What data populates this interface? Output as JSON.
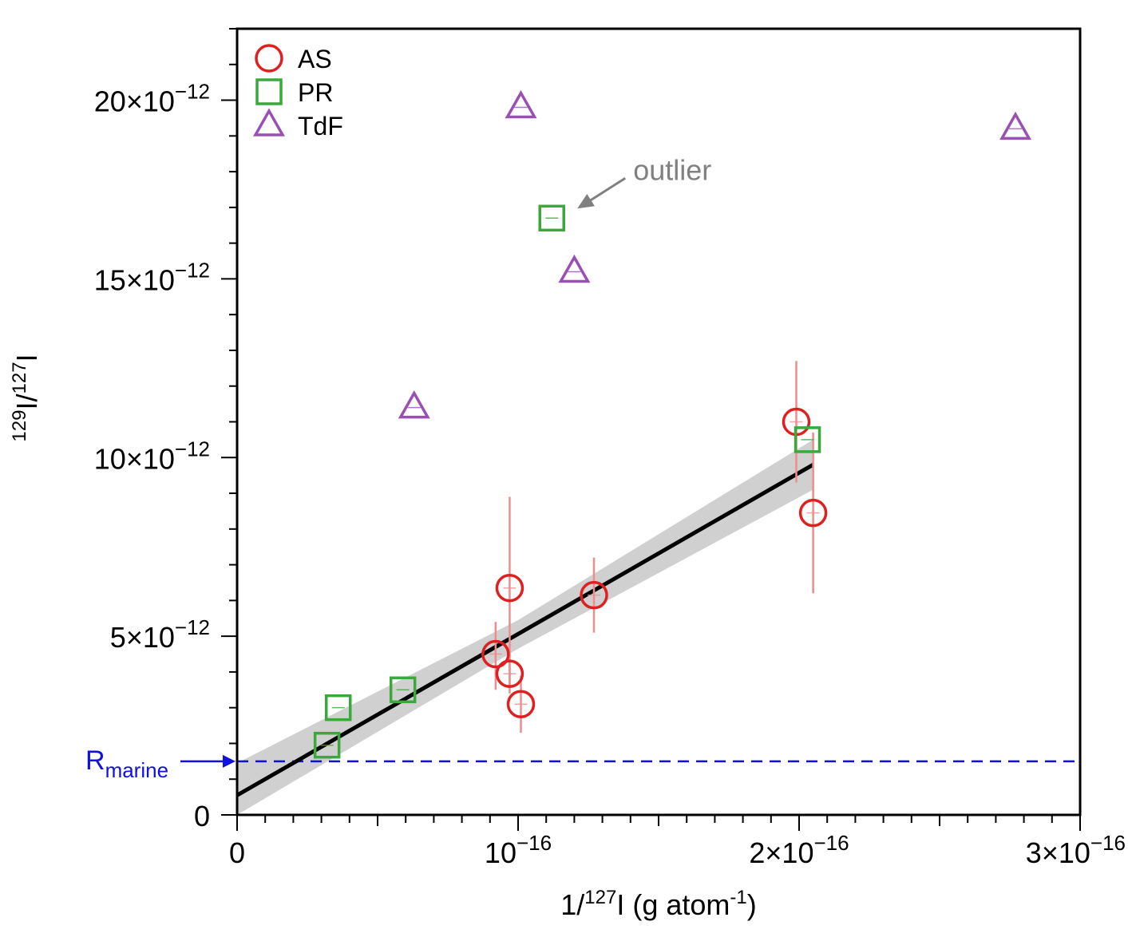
{
  "chart_data": {
    "type": "scatter",
    "xlabel": {
      "base": "1/",
      "sup1": "127",
      "mid": "I (g atom",
      "sup2": "-1",
      "end": ")"
    },
    "ylabel": {
      "sup1": "129",
      "mid": "I/",
      "sup2": "127",
      "end": "I"
    },
    "xlim": [
      0,
      3e-16
    ],
    "ylim": [
      0,
      2.2e-11
    ],
    "x_ticks": [
      {
        "value": 0,
        "base": "0",
        "exp": ""
      },
      {
        "value": 1e-16,
        "base": "10",
        "exp": "−16"
      },
      {
        "value": 2e-16,
        "base": "2×10",
        "exp": "−16"
      },
      {
        "value": 3e-16,
        "base": "3×10",
        "exp": "−16"
      }
    ],
    "y_ticks": [
      {
        "value": 0,
        "base": "0",
        "exp": ""
      },
      {
        "value": 5e-12,
        "base": "5×10",
        "exp": "−12"
      },
      {
        "value": 1e-11,
        "base": "10×10",
        "exp": "−12"
      },
      {
        "value": 1.5e-11,
        "base": "15×10",
        "exp": "−12"
      },
      {
        "value": 2e-11,
        "base": "20×10",
        "exp": "−12"
      }
    ],
    "series": [
      {
        "name": "AS",
        "marker": "circle",
        "color": "#e02020",
        "errorbar_color": "#f08c8c",
        "points": [
          {
            "x": 9.2e-17,
            "y": 4.5e-12,
            "ylo": 3.5e-12,
            "yhi": 5.4e-12
          },
          {
            "x": 9.7e-17,
            "y": 6.35e-12,
            "ylo": 3.6e-12,
            "yhi": 8.9e-12
          },
          {
            "x": 9.7e-17,
            "y": 3.95e-12,
            "ylo": 3.4e-12,
            "yhi": 4.5e-12
          },
          {
            "x": 1.01e-16,
            "y": 3.1e-12,
            "ylo": 2.3e-12,
            "yhi": 3.9e-12
          },
          {
            "x": 1.27e-16,
            "y": 6.15e-12,
            "ylo": 5.1e-12,
            "yhi": 7.2e-12
          },
          {
            "x": 1.99e-16,
            "y": 1.1e-11,
            "ylo": 9.3e-12,
            "yhi": 1.27e-11
          },
          {
            "x": 2.05e-16,
            "y": 8.45e-12,
            "ylo": 6.2e-12,
            "yhi": 1.07e-11
          }
        ]
      },
      {
        "name": "PR",
        "marker": "square",
        "color": "#3aa83a",
        "points": [
          {
            "x": 3.2e-17,
            "y": 1.95e-12
          },
          {
            "x": 3.6e-17,
            "y": 3e-12
          },
          {
            "x": 5.9e-17,
            "y": 3.5e-12
          },
          {
            "x": 1.12e-16,
            "y": 1.67e-11
          },
          {
            "x": 2.03e-16,
            "y": 1.05e-11
          }
        ]
      },
      {
        "name": "TdF",
        "marker": "triangle",
        "color": "#9a4fb4",
        "points": [
          {
            "x": 6.3e-17,
            "y": 1.14e-11
          },
          {
            "x": 1.01e-16,
            "y": 1.98e-11
          },
          {
            "x": 1.2e-16,
            "y": 1.52e-11
          },
          {
            "x": 2.77e-16,
            "y": 1.92e-11
          }
        ]
      }
    ],
    "fit_line": {
      "color": "#000000",
      "x": [
        0,
        2.05e-16
      ],
      "y": [
        5.5e-13,
        9.8e-12
      ],
      "band_color": "#c8c8c8",
      "band": [
        {
          "x": 0,
          "lo": -3.5e-13,
          "hi": 1.45e-12
        },
        {
          "x": 1e-16,
          "lo": 4.65e-12,
          "hi": 5.45e-12
        },
        {
          "x": 2.05e-16,
          "lo": 9.1e-12,
          "hi": 1.05e-11
        }
      ]
    },
    "reference_line": {
      "name": "R",
      "subscript": "marine",
      "y": 1.5e-12,
      "color": "#1010e0"
    },
    "annotations": [
      {
        "text": "outlier",
        "x": 1.12e-16,
        "y": 1.67e-11,
        "color": "#808080"
      }
    ],
    "legend_position": "top-left",
    "grid": false
  }
}
